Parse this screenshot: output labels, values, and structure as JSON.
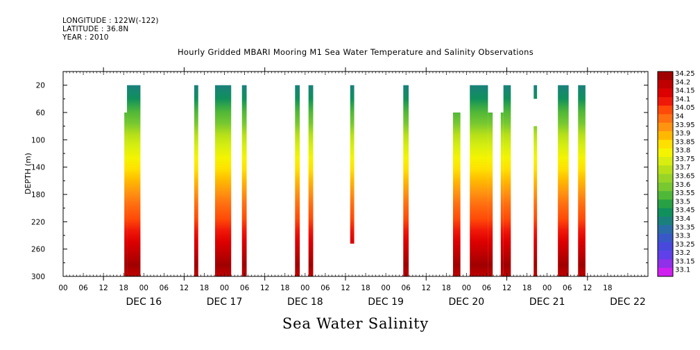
{
  "header": {
    "longitude": "LONGITUDE : 122W(-122)",
    "latitude": "LATITUDE : 36.8N",
    "year": "YEAR : 2010"
  },
  "chart_data": {
    "type": "heatmap",
    "title": "Hourly Gridded MBARI Mooring M1 Sea Water Temperature and Salinity Observations",
    "footer": "Sea Water Salinity",
    "ylabel": "DEPTH (m)",
    "x_unit": "hours since 2010-12-15 12:00",
    "xlim": [
      0,
      174
    ],
    "ylim": [
      300,
      0
    ],
    "y_ticks": [
      20,
      60,
      100,
      140,
      180,
      220,
      260,
      300
    ],
    "x_hour_ticks": [
      "00",
      "06",
      "12",
      "18",
      "00",
      "06",
      "12",
      "18",
      "00",
      "06",
      "12",
      "18",
      "00",
      "06",
      "12",
      "18",
      "00",
      "06",
      "12",
      "18",
      "00",
      "06",
      "12",
      "18",
      "00",
      "06",
      "12",
      "18"
    ],
    "x_tick_hours": [
      0,
      6,
      12,
      18,
      24,
      30,
      36,
      42,
      48,
      54,
      60,
      66,
      72,
      78,
      84,
      90,
      96,
      102,
      108,
      114,
      120,
      126,
      132,
      138,
      144,
      150,
      156,
      162
    ],
    "day_labels": [
      "DEC 16",
      "DEC 17",
      "DEC 18",
      "DEC 19",
      "DEC 20",
      "DEC 21",
      "DEC 22"
    ],
    "colorbar": {
      "levels": [
        "34.25",
        "34.2",
        "34.15",
        "34.1",
        "34.05",
        "34",
        "33.95",
        "33.9",
        "33.85",
        "33.8",
        "33.75",
        "33.7",
        "33.65",
        "33.6",
        "33.55",
        "33.5",
        "33.45",
        "33.4",
        "33.35",
        "33.3",
        "33.25",
        "33.2",
        "33.15",
        "33.1"
      ],
      "colors": [
        "#a00000",
        "#c00000",
        "#dc0000",
        "#f01808",
        "#ff4a08",
        "#ff7010",
        "#ff9410",
        "#ffb800",
        "#ffe000",
        "#f4f400",
        "#d8ee10",
        "#b8e018",
        "#98d428",
        "#78c830",
        "#50b838",
        "#28a044",
        "#10905c",
        "#1a807c",
        "#2a6ca8",
        "#3858c8",
        "#4848dc",
        "#6040e8",
        "#9030e8",
        "#d020f0"
      ]
    },
    "data_blocks": [
      {
        "x0": 18.2,
        "x1": 19.0,
        "top": 60
      },
      {
        "x0": 19.0,
        "x1": 23.0,
        "top": 20
      },
      {
        "x0": 39.0,
        "x1": 40.2,
        "top": 20
      },
      {
        "x0": 45.2,
        "x1": 50.0,
        "top": 20
      },
      {
        "x0": 53.2,
        "x1": 54.6,
        "top": 20
      },
      {
        "x0": 69.0,
        "x1": 70.4,
        "top": 20
      },
      {
        "x0": 73.0,
        "x1": 74.4,
        "top": 20
      },
      {
        "x0": 85.4,
        "x1": 86.6,
        "top": 20,
        "bottom": 252
      },
      {
        "x0": 101.2,
        "x1": 102.8,
        "top": 20
      },
      {
        "x0": 116.0,
        "x1": 118.2,
        "top": 60
      },
      {
        "x0": 121.0,
        "x1": 126.4,
        "top": 20
      },
      {
        "x0": 126.4,
        "x1": 127.8,
        "top": 60
      },
      {
        "x0": 130.2,
        "x1": 131.0,
        "top": 60
      },
      {
        "x0": 131.0,
        "x1": 133.2,
        "top": 20
      },
      {
        "x0": 140.0,
        "x1": 141.0,
        "top": 20,
        "bottom": 40
      },
      {
        "x0": 140.0,
        "x1": 141.0,
        "top": 80
      },
      {
        "x0": 147.2,
        "x1": 150.4,
        "top": 20
      },
      {
        "x0": 153.2,
        "x1": 155.4,
        "top": 20
      }
    ]
  }
}
